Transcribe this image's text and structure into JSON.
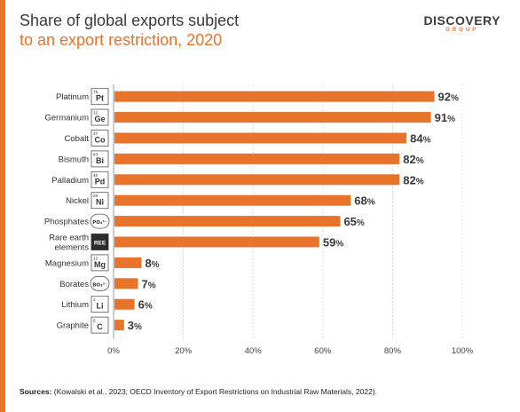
{
  "header": {
    "title_line1": "Share of global exports subject",
    "title_line2": "to an export restriction, 2020"
  },
  "logo": {
    "main": "DISCOVERY",
    "sub": "GROUP"
  },
  "chart_data": {
    "type": "bar",
    "orientation": "horizontal",
    "title": "Share of global exports subject to an export restriction, 2020",
    "categories": [
      "Platinum",
      "Germanium",
      "Cobalt",
      "Bismuth",
      "Palladium",
      "Nickel",
      "Phosphates",
      "Rare earth elements",
      "Magnesium",
      "Borates",
      "Lithium",
      "Graphite"
    ],
    "category_lines": [
      [
        "Platinum"
      ],
      [
        "Germanium"
      ],
      [
        "Cobalt"
      ],
      [
        "Bismuth"
      ],
      [
        "Palladium"
      ],
      [
        "Nickel"
      ],
      [
        "Phosphates"
      ],
      [
        "Rare earth",
        "elements"
      ],
      [
        "Magnesium"
      ],
      [
        "Borates"
      ],
      [
        "Lithium"
      ],
      [
        "Graphite"
      ]
    ],
    "values": [
      92,
      91,
      84,
      82,
      82,
      68,
      65,
      59,
      8,
      7,
      6,
      3
    ],
    "value_labels": [
      "92%",
      "91%",
      "84%",
      "82%",
      "82%",
      "68%",
      "65%",
      "59%",
      "8%",
      "7%",
      "6%",
      "3%"
    ],
    "element_tiles": [
      {
        "num": "78",
        "sym": "Pt",
        "style": "element"
      },
      {
        "num": "32",
        "sym": "Ge",
        "style": "element"
      },
      {
        "num": "27",
        "sym": "Co",
        "style": "element"
      },
      {
        "num": "83",
        "sym": "Bi",
        "style": "element"
      },
      {
        "num": "46",
        "sym": "Pd",
        "style": "element"
      },
      {
        "num": "28",
        "sym": "Ni",
        "style": "element"
      },
      {
        "num": "",
        "sym": "PO₄³⁻",
        "style": "ion"
      },
      {
        "num": "",
        "sym": "REE",
        "style": "dark"
      },
      {
        "num": "12",
        "sym": "Mg",
        "style": "element"
      },
      {
        "num": "",
        "sym": "BO₃³⁻",
        "style": "ion"
      },
      {
        "num": "3",
        "sym": "Li",
        "style": "element"
      },
      {
        "num": "6",
        "sym": "C",
        "style": "element"
      }
    ],
    "x_ticks": [
      "0%",
      "20%",
      "40%",
      "60%",
      "80%",
      "100%"
    ],
    "xlim": [
      0,
      100
    ],
    "grid": true,
    "bar_color": "#e8732a"
  },
  "sources": {
    "label": "Sources:",
    "text": "(Kowalski et al., 2023; OECD Inventory of Export Restrictions on Industrial Raw Materials, 2022)."
  }
}
